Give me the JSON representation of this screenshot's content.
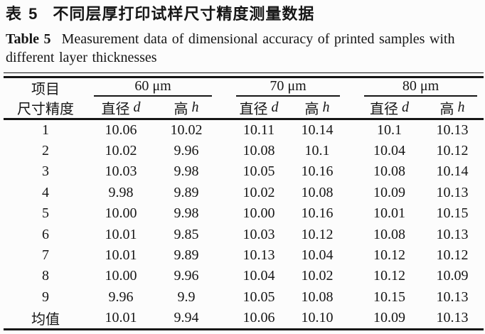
{
  "title": {
    "zh_label": "表 5",
    "zh_text": "不同层厚打印试样尺寸精度测量数据",
    "en_label": "Table 5",
    "en_line1": "Measurement data of dimensional accuracy of printed samples with",
    "en_line2": "different layer thicknesses"
  },
  "table": {
    "corner": {
      "line1": "项目",
      "line2": "尺寸精度"
    },
    "groups": [
      {
        "label": "60 μm",
        "sub": [
          {
            "zh": "直径",
            "var": "d"
          },
          {
            "zh": "高",
            "var": "h"
          }
        ]
      },
      {
        "label": "70 μm",
        "sub": [
          {
            "zh": "直径",
            "var": "d"
          },
          {
            "zh": "高",
            "var": "h"
          }
        ]
      },
      {
        "label": "80 μm",
        "sub": [
          {
            "zh": "直径",
            "var": "d"
          },
          {
            "zh": "高",
            "var": "h"
          }
        ]
      }
    ],
    "rows": [
      {
        "label": "1",
        "values": [
          "10.06",
          "10.02",
          "10.11",
          "10.14",
          "10.1",
          "10.13"
        ]
      },
      {
        "label": "2",
        "values": [
          "10.02",
          "9.96",
          "10.08",
          "10.1",
          "10.04",
          "10.12"
        ]
      },
      {
        "label": "3",
        "values": [
          "10.03",
          "9.98",
          "10.05",
          "10.16",
          "10.08",
          "10.14"
        ]
      },
      {
        "label": "4",
        "values": [
          "9.98",
          "9.89",
          "10.02",
          "10.08",
          "10.09",
          "10.13"
        ]
      },
      {
        "label": "5",
        "values": [
          "10.00",
          "9.98",
          "10.00",
          "10.16",
          "10.01",
          "10.15"
        ]
      },
      {
        "label": "6",
        "values": [
          "10.01",
          "9.85",
          "10.03",
          "10.12",
          "10.08",
          "10.13"
        ]
      },
      {
        "label": "7",
        "values": [
          "10.01",
          "9.89",
          "10.13",
          "10.04",
          "10.12",
          "10.12"
        ]
      },
      {
        "label": "8",
        "values": [
          "10.00",
          "9.96",
          "10.04",
          "10.02",
          "10.12",
          "10.09"
        ]
      },
      {
        "label": "9",
        "values": [
          "9.96",
          "9.9",
          "10.05",
          "10.08",
          "10.15",
          "10.13"
        ]
      },
      {
        "label": "均值",
        "values": [
          "10.01",
          "9.94",
          "10.06",
          "10.10",
          "10.09",
          "10.13"
        ]
      }
    ]
  },
  "colors": {
    "ink": "#161616",
    "background": "#fcfcfc"
  }
}
